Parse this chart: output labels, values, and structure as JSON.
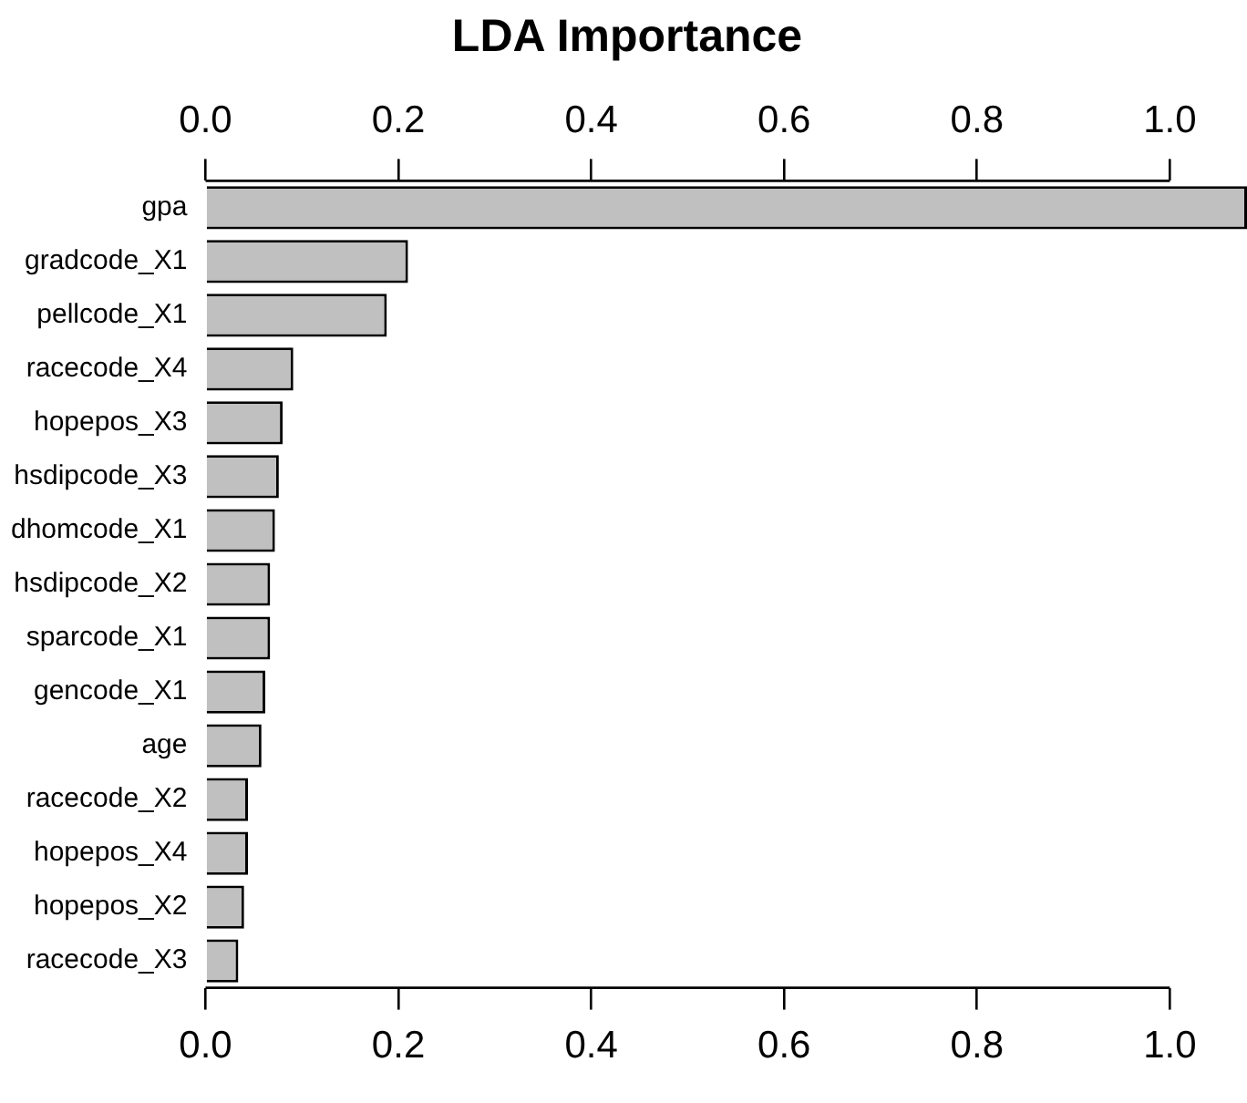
{
  "chart_data": {
    "type": "bar",
    "orientation": "horizontal",
    "title": "LDA Importance",
    "categories": [
      "gpa",
      "gradcode_X1",
      "pellcode_X1",
      "racecode_X4",
      "hopepos_X3",
      "hsdipcode_X3",
      "dhomcode_X1",
      "hsdipcode_X2",
      "sparcode_X1",
      "gencode_X1",
      "age",
      "racecode_X2",
      "hopepos_X4",
      "hopepos_X2",
      "racecode_X3"
    ],
    "values": [
      1.08,
      0.21,
      0.188,
      0.091,
      0.08,
      0.076,
      0.072,
      0.067,
      0.067,
      0.062,
      0.058,
      0.044,
      0.044,
      0.04,
      0.034
    ],
    "color": "#c0c0c0",
    "xlim": [
      0,
      1.08
    ],
    "xticks": [
      {
        "value": 0,
        "label": "0.0"
      },
      0.2,
      0.4,
      0.6,
      0.8,
      {
        "value": 1,
        "label": "1.0"
      }
    ],
    "x2lim": [
      0,
      1.08
    ],
    "x2ticks": [
      {
        "value": 0,
        "label": "0.0"
      },
      0.2,
      0.4,
      0.6,
      0.8,
      {
        "value": 1,
        "label": "1.0"
      }
    ]
  }
}
